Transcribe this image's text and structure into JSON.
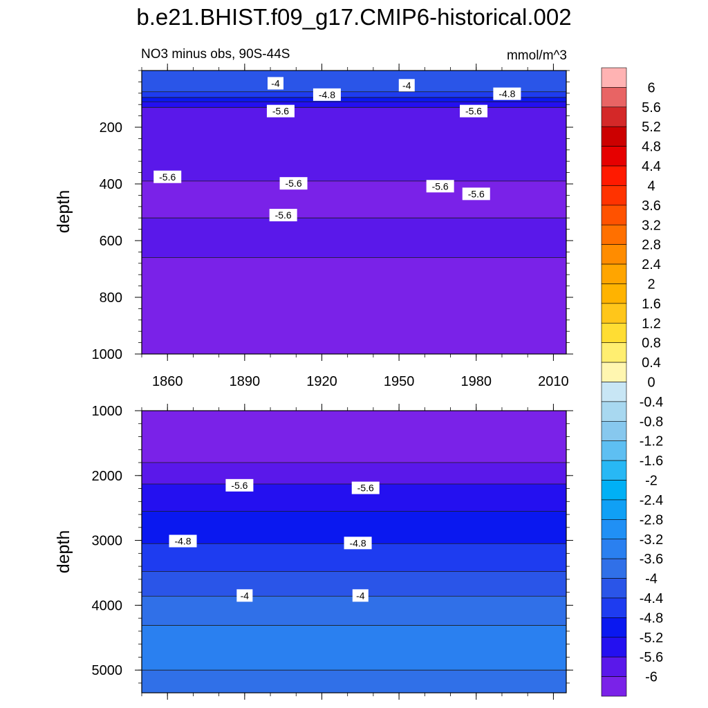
{
  "figure": {
    "title": "b.e21.BHIST.f09_g17.CMIP6-historical.002",
    "left_subtitle": "NO3 minus obs, 90S-44S",
    "right_subtitle": "mmol/m^3"
  },
  "chart_data": [
    {
      "type": "heatmap",
      "panel": "upper",
      "xlabel": "",
      "ylabel": "depth",
      "xlim": [
        1850,
        2015
      ],
      "ylim": [
        1000,
        0
      ],
      "xticks": [
        1860,
        1890,
        1920,
        1950,
        1980,
        2010
      ],
      "yticks": [
        200,
        400,
        600,
        800,
        1000
      ],
      "grid": false,
      "contours": [
        {
          "level": -4,
          "depth_top": 0,
          "depth_bottom": 75
        },
        {
          "level": -4.4,
          "depth_top": 75,
          "depth_bottom": 95
        },
        {
          "level": -4.8,
          "depth_top": 95,
          "depth_bottom": 110
        },
        {
          "level": -5.2,
          "depth_top": 110,
          "depth_bottom": 130
        },
        {
          "level": -5.6,
          "depth_top": 130,
          "depth_bottom": 390
        },
        {
          "level": -6,
          "depth_top": 390,
          "depth_bottom": 520
        },
        {
          "level": -5.6,
          "depth_top": 520,
          "depth_bottom": 660
        },
        {
          "level": -6,
          "depth_top": 660,
          "depth_bottom": 1000
        }
      ],
      "contour_labels": [
        {
          "text": "-4",
          "x": 1902,
          "depth": 45
        },
        {
          "text": "-4",
          "x": 1953,
          "depth": 52
        },
        {
          "text": "-4.8",
          "x": 1922,
          "depth": 85
        },
        {
          "text": "-4.8",
          "x": 1992,
          "depth": 82
        },
        {
          "text": "-5.6",
          "x": 1904,
          "depth": 143
        },
        {
          "text": "-5.6",
          "x": 1979,
          "depth": 143
        },
        {
          "text": "-5.6",
          "x": 1860,
          "depth": 375
        },
        {
          "text": "-5.6",
          "x": 1909,
          "depth": 398
        },
        {
          "text": "-5.6",
          "x": 1966,
          "depth": 408
        },
        {
          "text": "-5.6",
          "x": 1980,
          "depth": 435
        },
        {
          "text": "-5.6",
          "x": 1905,
          "depth": 510
        }
      ]
    },
    {
      "type": "heatmap",
      "panel": "lower",
      "xlabel": "",
      "ylabel": "depth",
      "xlim": [
        1850,
        2015
      ],
      "ylim": [
        5350,
        1000
      ],
      "yticks": [
        1000,
        2000,
        3000,
        4000,
        5000
      ],
      "grid": false,
      "contours": [
        {
          "level": -6,
          "depth_top": 1000,
          "depth_bottom": 1800
        },
        {
          "level": -5.6,
          "depth_top": 1800,
          "depth_bottom": 2130
        },
        {
          "level": -5.2,
          "depth_top": 2130,
          "depth_bottom": 2550
        },
        {
          "level": -4.8,
          "depth_top": 2550,
          "depth_bottom": 3050
        },
        {
          "level": -4.4,
          "depth_top": 3050,
          "depth_bottom": 3480
        },
        {
          "level": -4,
          "depth_top": 3480,
          "depth_bottom": 3860
        },
        {
          "level": -3.6,
          "depth_top": 3860,
          "depth_bottom": 4310
        },
        {
          "level": -3.2,
          "depth_top": 4310,
          "depth_bottom": 5000
        },
        {
          "level": -3.6,
          "depth_top": 5000,
          "depth_bottom": 5350
        }
      ],
      "contour_labels": [
        {
          "text": "-5.6",
          "x": 1888,
          "depth": 2150
        },
        {
          "text": "-5.6",
          "x": 1937,
          "depth": 2190
        },
        {
          "text": "-4.8",
          "x": 1866,
          "depth": 3010
        },
        {
          "text": "-4.8",
          "x": 1934,
          "depth": 3040
        },
        {
          "text": "-4",
          "x": 1890,
          "depth": 3850
        },
        {
          "text": "-4",
          "x": 1935,
          "depth": 3850
        }
      ]
    }
  ],
  "colorbar": {
    "labels": [
      "6",
      "5.6",
      "5.2",
      "4.8",
      "4.4",
      "4",
      "3.6",
      "3.2",
      "2.8",
      "2.4",
      "2",
      "1.6",
      "1.2",
      "0.8",
      "0.4",
      "0",
      "-0.4",
      "-0.8",
      "-1.2",
      "-1.6",
      "-2",
      "-2.4",
      "-2.8",
      "-3.2",
      "-3.6",
      "-4",
      "-4.4",
      "-4.8",
      "-5.2",
      "-5.6",
      "-6"
    ],
    "colors": [
      "#ffb3b3",
      "#e86464",
      "#d42828",
      "#cc0000",
      "#e60000",
      "#ff1a00",
      "#ff3300",
      "#ff5200",
      "#ff7000",
      "#ff8c00",
      "#ffa500",
      "#ffb300",
      "#ffc61a",
      "#ffdd33",
      "#ffee70",
      "#fff6b0",
      "#c8e6f5",
      "#a8d8f0",
      "#87c8ee",
      "#5ebff2",
      "#28b8f5",
      "#00b0f5",
      "#10a0f5",
      "#2090f5",
      "#2a80f0",
      "#3070e8",
      "#2a55e8",
      "#1e3cf0",
      "#0a18f0",
      "#2410f0",
      "#5a18ea",
      "#7a22e8"
    ]
  }
}
